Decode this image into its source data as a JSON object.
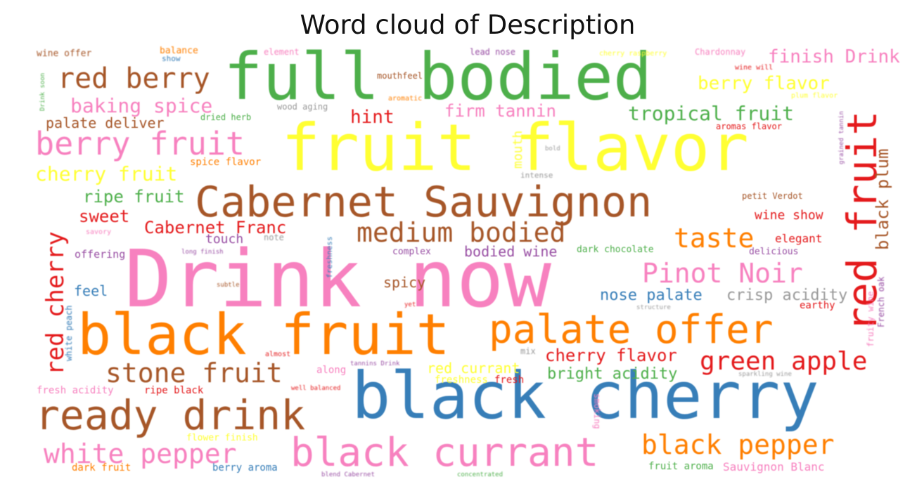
{
  "title": "Word cloud of Description",
  "palette": {
    "green": "#4daf4a",
    "yellow": "#ffff33",
    "brown": "#a65628",
    "pink": "#f781bf",
    "orange": "#ff7f00",
    "blue": "#377eb8",
    "red": "#e41a1c",
    "purple": "#984ea3",
    "grey": "#999999"
  },
  "words": [
    {
      "text": "Drink now",
      "color": "#f781bf"
    },
    {
      "text": "fruit flavor",
      "color": "#ffff33"
    },
    {
      "text": "full bodied",
      "color": "#4daf4a"
    },
    {
      "text": "black cherry",
      "color": "#377eb8"
    },
    {
      "text": "black fruit",
      "color": "#ff7f00"
    },
    {
      "text": "Cabernet Sauvignon",
      "color": "#a65628"
    },
    {
      "text": "ready drink",
      "color": "#a65628"
    },
    {
      "text": "black currant",
      "color": "#f781bf"
    },
    {
      "text": "palate offer",
      "color": "#ff7f00"
    },
    {
      "text": "red fruit",
      "color": "#e41a1c"
    },
    {
      "text": "berry fruit",
      "color": "#f781bf"
    },
    {
      "text": "medium bodied",
      "color": "#a65628"
    },
    {
      "text": "red berry",
      "color": "#a65628"
    },
    {
      "text": "stone fruit",
      "color": "#a65628"
    },
    {
      "text": "white pepper",
      "color": "#f781bf"
    },
    {
      "text": "black pepper",
      "color": "#ff7f00"
    },
    {
      "text": "Pinot Noir",
      "color": "#f781bf"
    },
    {
      "text": "taste",
      "color": "#ff7f00"
    },
    {
      "text": "green apple",
      "color": "#e41a1c"
    },
    {
      "text": "red cherry",
      "color": "#e41a1c"
    },
    {
      "text": "tropical fruit",
      "color": "#4daf4a"
    },
    {
      "text": "baking spice",
      "color": "#f781bf"
    },
    {
      "text": "cherry fruit",
      "color": "#ffff33"
    },
    {
      "text": "finish Drink",
      "color": "#f781bf"
    },
    {
      "text": "berry flavor",
      "color": "#ffff33"
    },
    {
      "text": "black plum",
      "color": "#a65628"
    },
    {
      "text": "Cabernet Franc",
      "color": "#e41a1c"
    },
    {
      "text": "firm tannin",
      "color": "#f781bf"
    },
    {
      "text": "cherry flavor",
      "color": "#e41a1c"
    },
    {
      "text": "hint",
      "color": "#e41a1c"
    },
    {
      "text": "ripe fruit",
      "color": "#4daf4a"
    },
    {
      "text": "sweet",
      "color": "#e41a1c"
    },
    {
      "text": "nose palate",
      "color": "#377eb8"
    },
    {
      "text": "crisp acidity",
      "color": "#999999"
    },
    {
      "text": "bright acidity",
      "color": "#4daf4a"
    },
    {
      "text": "palate deliver",
      "color": "#a65628"
    },
    {
      "text": "bodied wine",
      "color": "#984ea3"
    },
    {
      "text": "spicy",
      "color": "#a65628"
    },
    {
      "text": "red currant",
      "color": "#ffff33"
    },
    {
      "text": "touch",
      "color": "#984ea3"
    },
    {
      "text": "feel",
      "color": "#377eb8"
    },
    {
      "text": "wine show",
      "color": "#e41a1c"
    },
    {
      "text": "elegant",
      "color": "#e41a1c"
    },
    {
      "text": "Sauvignon Blanc",
      "color": "#f781bf"
    },
    {
      "text": "fruit aroma",
      "color": "#4daf4a"
    },
    {
      "text": "berry aroma",
      "color": "#377eb8"
    },
    {
      "text": "dark fruit",
      "color": "#ff7f00"
    },
    {
      "text": "flower finish",
      "color": "#ffff33"
    },
    {
      "text": "fresh acidity",
      "color": "#f781bf"
    },
    {
      "text": "ripe black",
      "color": "#e41a1c"
    },
    {
      "text": "along",
      "color": "#f781bf"
    },
    {
      "text": "freshness",
      "color": "#ffff33"
    },
    {
      "text": "fresh",
      "color": "#e41a1c"
    },
    {
      "text": "offering",
      "color": "#984ea3"
    },
    {
      "text": "complex",
      "color": "#984ea3"
    },
    {
      "text": "dark chocolate",
      "color": "#4daf4a"
    },
    {
      "text": "delicious",
      "color": "#984ea3"
    },
    {
      "text": "earthy",
      "color": "#e41a1c"
    },
    {
      "text": "petit Verdot",
      "color": "#a65628"
    },
    {
      "text": "aromas flavor",
      "color": "#e41a1c"
    },
    {
      "text": "spice flavor",
      "color": "#ff7f00"
    },
    {
      "text": "dried herb",
      "color": "#4daf4a"
    },
    {
      "text": "wood aging",
      "color": "#999999"
    },
    {
      "text": "mouthfeel",
      "color": "#a65628"
    },
    {
      "text": "aromatic",
      "color": "#ff7f00"
    },
    {
      "text": "wine offer",
      "color": "#a65628"
    },
    {
      "text": "balance",
      "color": "#ff7f00"
    },
    {
      "text": "show",
      "color": "#377eb8"
    },
    {
      "text": "element",
      "color": "#f781bf"
    },
    {
      "text": "lead nose",
      "color": "#984ea3"
    },
    {
      "text": "cherry raspberry",
      "color": "#ffff33"
    },
    {
      "text": "Chardonnay",
      "color": "#f781bf"
    },
    {
      "text": "wine will",
      "color": "#e41a1c"
    },
    {
      "text": "plum flavor",
      "color": "#ffff33"
    },
    {
      "text": "intense",
      "color": "#999999"
    },
    {
      "text": "bold",
      "color": "#999999"
    },
    {
      "text": "mouth",
      "color": "#ffff33"
    },
    {
      "text": "note",
      "color": "#999999"
    },
    {
      "text": "long finish",
      "color": "#984ea3"
    },
    {
      "text": "subtle",
      "color": "#a65628"
    },
    {
      "text": "yet",
      "color": "#e41a1c"
    },
    {
      "text": "structure",
      "color": "#999999"
    },
    {
      "text": "mix",
      "color": "#999999"
    },
    {
      "text": "almost",
      "color": "#e41a1c"
    },
    {
      "text": "tannins Drink",
      "color": "#984ea3"
    },
    {
      "text": "well balanced",
      "color": "#e41a1c"
    },
    {
      "text": "sparkling wine",
      "color": "#999999"
    },
    {
      "text": "smoking",
      "color": "#f781bf"
    },
    {
      "text": "white peach",
      "color": "#377eb8"
    },
    {
      "text": "fruity wine",
      "color": "#f781bf"
    },
    {
      "text": "French oak",
      "color": "#984ea3"
    },
    {
      "text": "grained tannin",
      "color": "#984ea3"
    },
    {
      "text": "Drink soon",
      "color": "#4daf4a"
    },
    {
      "text": "freshness",
      "color": "#377eb8"
    },
    {
      "text": "savory",
      "color": "#f781bf"
    },
    {
      "text": "concentrated",
      "color": "#4daf4a"
    },
    {
      "text": "blend Cabernet",
      "color": "#984ea3"
    }
  ]
}
